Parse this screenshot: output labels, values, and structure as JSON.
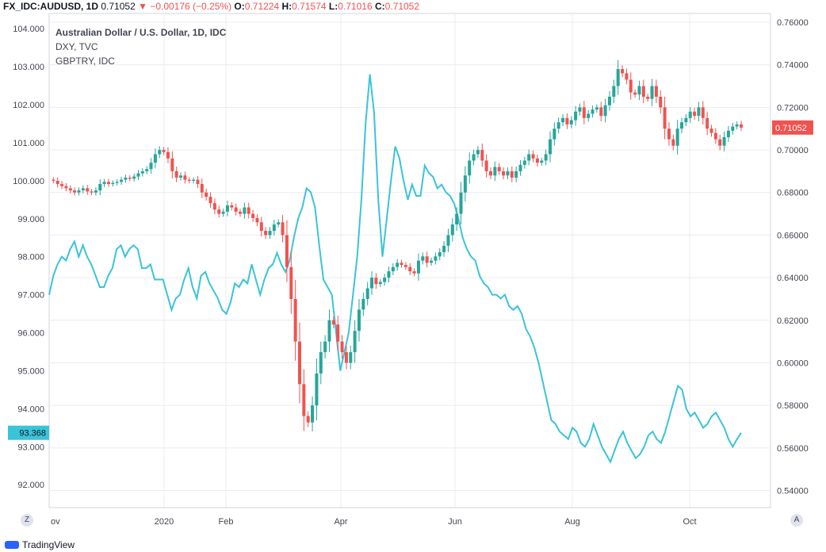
{
  "header": {
    "symbol": "FX_IDC:AUDUSD, 1D",
    "last": "0.71052",
    "arrow": "▼",
    "change": "−0.00176 (−0.25%)",
    "o_label": "O:",
    "o": "0.71224",
    "h_label": "H:",
    "h": "0.71574",
    "l_label": "L:",
    "l": "0.71016",
    "c_label": "C:",
    "c": "0.71052"
  },
  "legend": {
    "main": "Australian Dollar / U.S. Dollar, 1D, IDC",
    "s2": "DXY, TVC",
    "s3": "GBPTRY, IDC"
  },
  "corner_left": "Z",
  "corner_right": "A",
  "footer_brand": "TradingView",
  "colors": {
    "up": "#26a69a",
    "down": "#ef5350",
    "dxy": "#3bc3d8",
    "grid": "#e9ecf2",
    "axis": "#787b86"
  },
  "chart_data": {
    "type": "candlestick",
    "x_ticks": [
      "ov",
      "2020",
      "Feb",
      "Apr",
      "Jun",
      "Aug",
      "Oct"
    ],
    "left_axis": {
      "series": "DXY",
      "ylim": [
        91.4,
        104.4
      ],
      "ticks": [
        "104.000",
        "103.000",
        "102.000",
        "101.000",
        "100.000",
        "99.000",
        "98.000",
        "97.000",
        "96.000",
        "95.000",
        "94.000",
        "93.000",
        "92.000"
      ],
      "last_label": "93.368"
    },
    "right_axis": {
      "series": "AUDUSD",
      "ylim": [
        0.532,
        0.7641
      ],
      "ticks": [
        "0.76000",
        "0.74000",
        "0.72000",
        "0.70000",
        "0.68000",
        "0.66000",
        "0.64000",
        "0.62000",
        "0.60000",
        "0.58000",
        "0.56000",
        "0.54000"
      ],
      "last_label": "0.71052"
    },
    "series": [
      {
        "name": "AUDUSD",
        "axis": "right",
        "kind": "candles",
        "close": [
          0.686,
          0.6855,
          0.684,
          0.683,
          0.682,
          0.681,
          0.68,
          0.681,
          0.682,
          0.6805,
          0.68,
          0.681,
          0.684,
          0.685,
          0.684,
          0.6845,
          0.685,
          0.686,
          0.687,
          0.6865,
          0.6875,
          0.689,
          0.69,
          0.691,
          0.694,
          0.698,
          0.7,
          0.699,
          0.696,
          0.69,
          0.687,
          0.688,
          0.686,
          0.6855,
          0.686,
          0.684,
          0.68,
          0.678,
          0.675,
          0.672,
          0.67,
          0.671,
          0.674,
          0.673,
          0.671,
          0.67,
          0.673,
          0.67,
          0.668,
          0.666,
          0.662,
          0.66,
          0.662,
          0.665,
          0.666,
          0.66,
          0.645,
          0.63,
          0.61,
          0.59,
          0.575,
          0.572,
          0.58,
          0.595,
          0.605,
          0.61,
          0.62,
          0.618,
          0.61,
          0.605,
          0.6,
          0.605,
          0.615,
          0.625,
          0.63,
          0.635,
          0.64,
          0.637,
          0.638,
          0.64,
          0.643,
          0.645,
          0.647,
          0.646,
          0.645,
          0.643,
          0.642,
          0.648,
          0.65,
          0.647,
          0.648,
          0.65,
          0.652,
          0.655,
          0.66,
          0.665,
          0.67,
          0.68,
          0.688,
          0.695,
          0.698,
          0.7,
          0.695,
          0.69,
          0.688,
          0.692,
          0.69,
          0.688,
          0.69,
          0.687,
          0.69,
          0.693,
          0.695,
          0.698,
          0.696,
          0.694,
          0.695,
          0.698,
          0.705,
          0.71,
          0.713,
          0.715,
          0.712,
          0.714,
          0.718,
          0.72,
          0.715,
          0.717,
          0.719,
          0.72,
          0.716,
          0.721,
          0.725,
          0.73,
          0.738,
          0.736,
          0.733,
          0.727,
          0.726,
          0.73,
          0.725,
          0.724,
          0.73,
          0.725,
          0.72,
          0.71,
          0.705,
          0.702,
          0.71,
          0.713,
          0.715,
          0.718,
          0.716,
          0.72,
          0.715,
          0.71,
          0.708,
          0.705,
          0.702,
          0.706,
          0.709,
          0.711,
          0.712,
          0.7105
        ]
      },
      {
        "name": "DXY",
        "axis": "left",
        "kind": "line",
        "values": [
          97.0,
          97.5,
          97.8,
          98.0,
          97.9,
          98.2,
          98.4,
          98.0,
          98.3,
          98.0,
          97.8,
          97.5,
          97.2,
          97.2,
          97.5,
          97.7,
          98.2,
          98.3,
          98.0,
          98.2,
          98.3,
          98.2,
          97.7,
          97.7,
          97.8,
          97.4,
          97.4,
          97.4,
          97.0,
          96.6,
          96.9,
          97.0,
          97.4,
          97.7,
          97.2,
          96.9,
          97.5,
          97.6,
          97.3,
          97.1,
          96.9,
          96.6,
          96.5,
          96.8,
          97.3,
          97.2,
          97.4,
          97.3,
          97.8,
          97.4,
          97.0,
          97.4,
          97.7,
          97.8,
          98.1,
          97.8,
          97.6,
          97.9,
          98.5,
          99.0,
          99.3,
          99.8,
          99.7,
          99.3,
          98.3,
          97.4,
          97.2,
          97.0,
          96.0,
          95.0,
          95.5,
          96.0,
          97.0,
          98.0,
          99.5,
          101.5,
          102.8,
          101.8,
          99.5,
          98.0,
          99.0,
          100.0,
          100.9,
          100.6,
          100.0,
          99.5,
          99.9,
          99.6,
          99.6,
          100.4,
          100.2,
          100.1,
          99.8,
          99.9,
          99.7,
          99.6,
          99.4,
          99.0,
          98.5,
          98.2,
          98.0,
          97.9,
          97.5,
          97.3,
          97.2,
          97.0,
          97.0,
          96.9,
          97.0,
          96.7,
          96.6,
          96.7,
          96.5,
          96.1,
          95.9,
          95.6,
          95.2,
          94.7,
          94.2,
          93.7,
          93.6,
          93.4,
          93.3,
          93.2,
          93.5,
          93.4,
          93.1,
          93.0,
          93.2,
          93.6,
          93.3,
          93.0,
          92.8,
          92.6,
          92.9,
          93.2,
          93.4,
          93.1,
          92.9,
          92.7,
          92.8,
          93.0,
          93.3,
          93.4,
          93.2,
          93.1,
          93.4,
          93.8,
          94.2,
          94.6,
          94.5,
          94.0,
          93.8,
          93.9,
          93.7,
          93.5,
          93.6,
          93.8,
          93.9,
          93.7,
          93.5,
          93.2,
          93.0,
          93.2,
          93.368
        ]
      }
    ]
  }
}
